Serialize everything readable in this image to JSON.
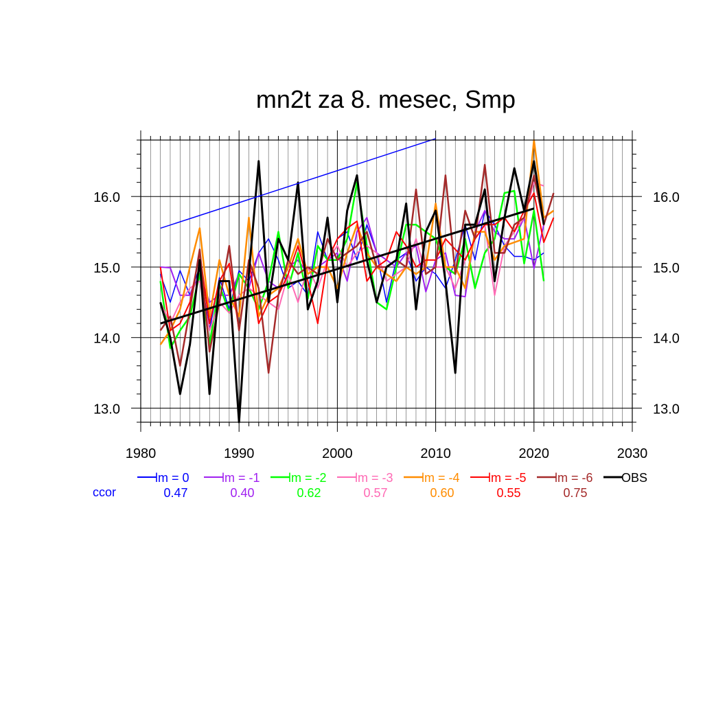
{
  "chart_data": {
    "type": "line",
    "title": "mn2t za 8. mesec, Smp",
    "xlabel": "",
    "ylabel": "",
    "xlim": [
      1980,
      2030
    ],
    "ylim": [
      12.8,
      16.8
    ],
    "xticks": [
      "1980",
      "1990",
      "2000",
      "2010",
      "2020",
      "2030"
    ],
    "yticks": [
      "13.0",
      "14.0",
      "15.0",
      "16.0"
    ],
    "grid": true,
    "ccor_label": "ccor",
    "series": [
      {
        "name": "lm = 0",
        "color": "#0000ff",
        "width": 1.5,
        "ccor": "0.47",
        "x_start": 1982,
        "values": [
          14.9,
          14.5,
          14.95,
          14.6,
          15.0,
          14.1,
          14.85,
          14.4,
          14.95,
          14.8,
          15.2,
          15.4,
          15.1,
          14.7,
          14.8,
          14.6,
          15.5,
          15.1,
          15.4,
          15.5,
          15.1,
          15.6,
          15.2,
          14.5,
          15.1,
          15.2,
          14.8,
          15.0,
          14.9,
          14.7,
          15.1,
          15.6,
          15.1,
          15.8,
          15.6,
          15.3,
          15.15,
          15.15,
          15.1,
          15.2
        ]
      },
      {
        "name": "lm = -1",
        "color": "#a020f0",
        "width": 2,
        "ccor": "0.40",
        "x_start": 1982,
        "values": [
          15.0,
          14.99,
          14.6,
          14.6,
          14.9,
          14.5,
          14.6,
          14.6,
          14.9,
          14.7,
          15.2,
          14.8,
          14.7,
          15.0,
          15.1,
          14.9,
          15.0,
          15.1,
          15.2,
          14.8,
          15.5,
          15.7,
          15.2,
          15.1,
          15.0,
          15.2,
          15.3,
          14.65,
          15.1,
          15.2,
          14.6,
          14.58,
          15.5,
          15.8,
          15.5,
          15.4,
          15.4,
          15.7,
          14.98,
          15.6
        ]
      },
      {
        "name": "lm = -2",
        "color": "#00ff00",
        "width": 2.5,
        "ccor": "0.62",
        "x_start": 1982,
        "values": [
          14.8,
          13.85,
          14.1,
          14.3,
          14.9,
          13.9,
          14.75,
          14.35,
          14.9,
          14.7,
          14.4,
          14.8,
          15.5,
          14.7,
          15.2,
          14.55,
          15.3,
          15.1,
          15.1,
          15.4,
          16.2,
          15.3,
          14.5,
          14.4,
          15.0,
          15.6,
          15.6,
          15.5,
          15.4,
          15.0,
          14.9,
          15.4,
          14.7,
          15.2,
          15.4,
          16.05,
          16.08,
          15.05,
          15.8,
          14.8
        ]
      },
      {
        "name": "lm = -3",
        "color": "#ff69b4",
        "width": 2,
        "ccor": "0.57",
        "x_start": 1982,
        "values": [
          14.5,
          14.2,
          14.5,
          14.7,
          14.8,
          14.1,
          14.5,
          14.35,
          14.6,
          14.7,
          14.6,
          14.5,
          14.4,
          14.9,
          14.5,
          15.0,
          14.7,
          15.1,
          15.3,
          15.0,
          15.2,
          15.3,
          15.2,
          14.8,
          14.9,
          15.0,
          15.4,
          14.9,
          15.0,
          15.0,
          14.7,
          15.1,
          15.4,
          15.6,
          14.6,
          15.3,
          15.5,
          15.7,
          16.2,
          16.15
        ]
      },
      {
        "name": "lm = -4",
        "color": "#ff8c00",
        "width": 2.5,
        "ccor": "0.60",
        "x_start": 1982,
        "values": [
          13.9,
          14.1,
          14.4,
          15.0,
          15.55,
          14.3,
          15.1,
          14.6,
          14.3,
          15.7,
          14.3,
          14.6,
          14.7,
          15.0,
          15.4,
          14.9,
          15.0,
          15.0,
          14.7,
          15.2,
          15.6,
          15.2,
          15.0,
          14.9,
          14.8,
          15.0,
          14.9,
          15.0,
          15.9,
          15.0,
          15.0,
          14.7,
          15.5,
          15.5,
          15.1,
          15.3,
          15.35,
          15.4,
          16.8,
          15.7,
          15.8
        ]
      },
      {
        "name": "lm = -5",
        "color": "#ff0000",
        "width": 2,
        "ccor": "0.55",
        "x_start": 1982,
        "values": [
          15.0,
          14.1,
          14.2,
          14.5,
          15.2,
          14.2,
          14.8,
          15.05,
          14.1,
          15.1,
          14.2,
          14.5,
          14.6,
          14.9,
          15.3,
          14.8,
          14.2,
          15.1,
          15.4,
          15.55,
          15.65,
          14.8,
          15.0,
          15.1,
          15.5,
          15.3,
          15.0,
          15.1,
          15.1,
          15.4,
          15.25,
          15.1,
          15.4,
          15.6,
          15.6,
          15.7,
          15.5,
          15.8,
          16.05,
          15.35,
          15.7
        ]
      },
      {
        "name": "lm = -6",
        "color": "#a52a2a",
        "width": 2.5,
        "ccor": "0.75",
        "x_start": 1982,
        "values": [
          14.1,
          14.3,
          13.6,
          14.4,
          15.25,
          13.8,
          14.5,
          15.3,
          14.1,
          15.1,
          14.7,
          13.5,
          14.6,
          15.1,
          14.9,
          15.0,
          14.9,
          15.4,
          15.1,
          15.2,
          15.3,
          15.5,
          15.0,
          15.0,
          15.1,
          15.0,
          16.1,
          14.9,
          15.0,
          16.3,
          14.9,
          15.8,
          15.4,
          16.45,
          15.2,
          15.2,
          15.6,
          15.7,
          16.3,
          15.6,
          16.05
        ]
      },
      {
        "name": "OBS",
        "color": "#000000",
        "width": 3,
        "ccor": "",
        "x_start": 1982,
        "values": [
          14.5,
          14.0,
          13.2,
          13.9,
          15.1,
          13.2,
          14.8,
          14.8,
          12.8,
          14.9,
          16.5,
          14.5,
          15.4,
          15.1,
          16.2,
          14.4,
          14.8,
          15.7,
          14.5,
          15.8,
          16.3,
          15.1,
          14.5,
          15.0,
          15.1,
          15.9,
          14.4,
          15.5,
          15.8,
          14.8,
          13.5,
          15.6,
          15.6,
          16.1,
          14.8,
          15.7,
          16.4,
          15.8,
          16.5,
          15.6
        ]
      }
    ],
    "trend_lines": [
      {
        "series": "lm = 0",
        "color": "#0000ff",
        "width": 1.5,
        "x": [
          1982,
          2010
        ],
        "y": [
          15.55,
          16.82
        ]
      },
      {
        "series": "OBS",
        "color": "#000000",
        "width": 3,
        "x": [
          1982,
          2020
        ],
        "y": [
          14.2,
          15.83
        ]
      }
    ]
  }
}
